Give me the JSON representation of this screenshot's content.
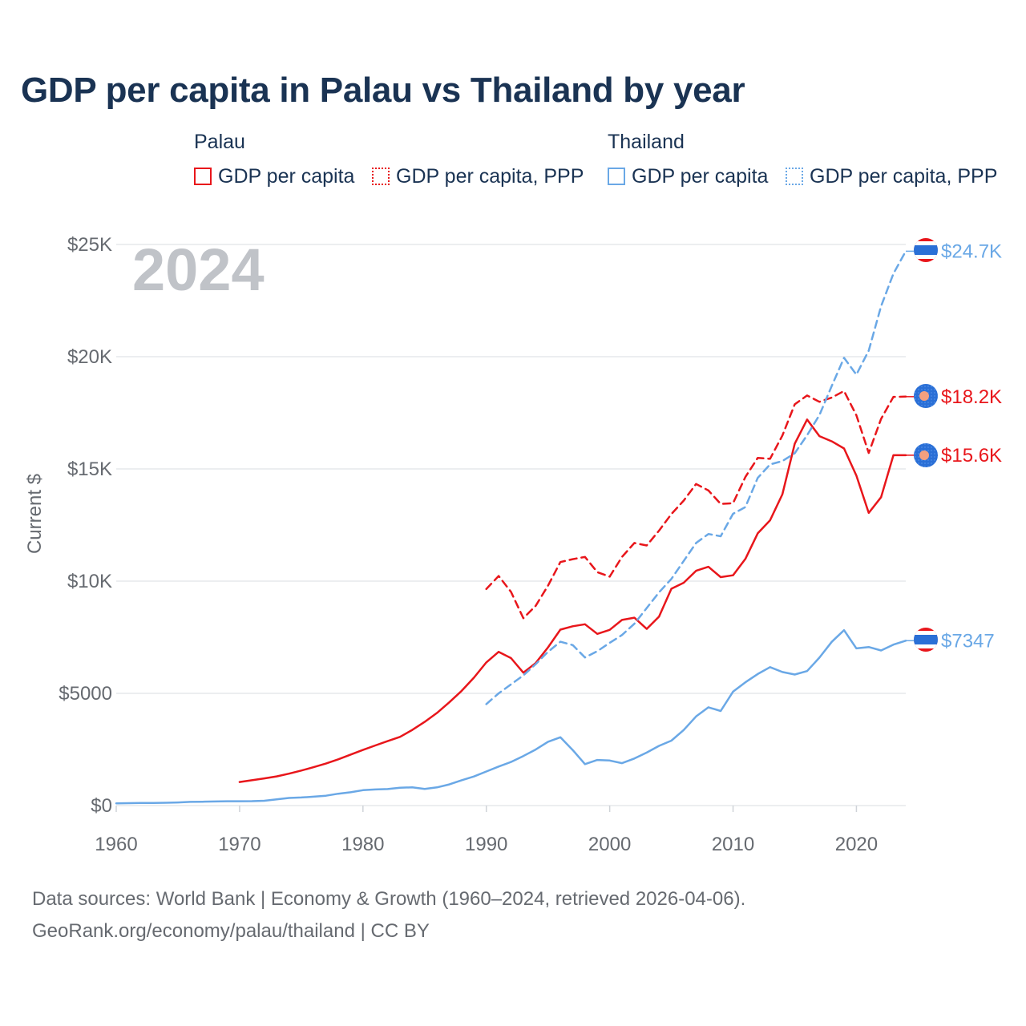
{
  "title": "GDP per capita in Palau vs Thailand by year",
  "legend": {
    "groups": [
      {
        "name": "Palau",
        "items": [
          {
            "label": "GDP per capita",
            "color": "#e8161b",
            "style": "solid"
          },
          {
            "label": "GDP per capita, PPP",
            "color": "#e8161b",
            "style": "dotted"
          }
        ]
      },
      {
        "name": "Thailand",
        "items": [
          {
            "label": "GDP per capita",
            "color": "#6aa8e6",
            "style": "solid"
          },
          {
            "label": "GDP per capita, PPP",
            "color": "#6aa8e6",
            "style": "dotted"
          }
        ]
      }
    ]
  },
  "year_watermark": "2024",
  "footer": {
    "line1": "Data sources: World Bank | Economy & Growth (1960–2024, retrieved 2026-04-06).",
    "line2": "GeoRank.org/economy/palau/thailand | CC BY"
  },
  "chart_data": {
    "type": "line",
    "title": "GDP per capita in Palau vs Thailand by year",
    "xlabel": "",
    "ylabel": "Current $",
    "xlim": [
      1960,
      2024
    ],
    "ylim": [
      0,
      25000
    ],
    "x_ticks": [
      1960,
      1970,
      1980,
      1990,
      2000,
      2010,
      2020
    ],
    "x_tick_labels": [
      "1960",
      "1970",
      "1980",
      "1990",
      "2000",
      "2010",
      "2020"
    ],
    "y_ticks": [
      0,
      5000,
      10000,
      15000,
      20000,
      25000
    ],
    "y_tick_labels": [
      "$0",
      "$5000",
      "$10K",
      "$15K",
      "$20K",
      "$25K"
    ],
    "grid": true,
    "series": [
      {
        "name": "Palau GDP per capita",
        "country": "Palau",
        "color": "#e8161b",
        "dashed": false,
        "end_label": "$15.6K",
        "x": [
          1970,
          1971,
          1972,
          1973,
          1974,
          1975,
          1976,
          1977,
          1978,
          1979,
          1980,
          1981,
          1982,
          1983,
          1984,
          1985,
          1986,
          1987,
          1988,
          1989,
          1990,
          1991,
          1992,
          1993,
          1994,
          1995,
          1996,
          1997,
          1998,
          1999,
          2000,
          2001,
          2002,
          2003,
          2004,
          2005,
          2006,
          2007,
          2008,
          2009,
          2010,
          2011,
          2012,
          2013,
          2014,
          2015,
          2016,
          2017,
          2018,
          2019,
          2020,
          2021,
          2022,
          2023,
          2024
        ],
        "values": [
          1050,
          1130,
          1210,
          1300,
          1420,
          1560,
          1710,
          1870,
          2060,
          2270,
          2480,
          2680,
          2870,
          3060,
          3370,
          3730,
          4130,
          4600,
          5110,
          5700,
          6380,
          6850,
          6570,
          5920,
          6350,
          7050,
          7840,
          7990,
          8080,
          7650,
          7830,
          8270,
          8370,
          7870,
          8420,
          9660,
          9930,
          10460,
          10640,
          10180,
          10260,
          10990,
          12130,
          12710,
          13870,
          16120,
          17200,
          16460,
          16230,
          15910,
          14700,
          13040,
          13740,
          15610,
          15610
        ]
      },
      {
        "name": "Palau GDP per capita, PPP",
        "country": "Palau",
        "color": "#e8161b",
        "dashed": true,
        "end_label": "$18.2K",
        "x": [
          1990,
          1991,
          1992,
          1993,
          1994,
          1995,
          1996,
          1997,
          1998,
          1999,
          2000,
          2001,
          2002,
          2003,
          2004,
          2005,
          2006,
          2007,
          2008,
          2009,
          2010,
          2011,
          2012,
          2013,
          2014,
          2015,
          2016,
          2017,
          2018,
          2019,
          2020,
          2021,
          2022,
          2023,
          2024
        ],
        "values": [
          9650,
          10230,
          9520,
          8350,
          8900,
          9800,
          10850,
          10980,
          11080,
          10400,
          10200,
          11080,
          11700,
          11590,
          12250,
          12990,
          13590,
          14330,
          14040,
          13440,
          13470,
          14640,
          15490,
          15450,
          16490,
          17880,
          18270,
          17990,
          18180,
          18470,
          17390,
          15710,
          17230,
          18210,
          18220
        ]
      },
      {
        "name": "Thailand GDP per capita",
        "country": "Thailand",
        "color": "#6aa8e6",
        "dashed": false,
        "end_label": "$7347",
        "x": [
          1960,
          1961,
          1962,
          1963,
          1964,
          1965,
          1966,
          1967,
          1968,
          1969,
          1970,
          1971,
          1972,
          1973,
          1974,
          1975,
          1976,
          1977,
          1978,
          1979,
          1980,
          1981,
          1982,
          1983,
          1984,
          1985,
          1986,
          1987,
          1988,
          1989,
          1990,
          1991,
          1992,
          1993,
          1994,
          1995,
          1996,
          1997,
          1998,
          1999,
          2000,
          2001,
          2002,
          2003,
          2004,
          2005,
          2006,
          2007,
          2008,
          2009,
          2010,
          2011,
          2012,
          2013,
          2014,
          2015,
          2016,
          2017,
          2018,
          2019,
          2020,
          2021,
          2022,
          2023,
          2024
        ],
        "values": [
          101,
          107,
          114,
          118,
          126,
          138,
          163,
          173,
          181,
          192,
          192,
          196,
          216,
          277,
          340,
          361,
          395,
          441,
          529,
          592,
          686,
          717,
          734,
          792,
          814,
          744,
          810,
          942,
          1128,
          1298,
          1518,
          1741,
          1942,
          2208,
          2495,
          2844,
          3044,
          2475,
          1846,
          2033,
          2008,
          1890,
          2096,
          2359,
          2660,
          2894,
          3369,
          3973,
          4379,
          4213,
          5076,
          5492,
          5861,
          6168,
          5951,
          5840,
          5994,
          6594,
          7296,
          7814,
          7002,
          7066,
          6909,
          7172,
          7347
        ]
      },
      {
        "name": "Thailand GDP per capita, PPP",
        "country": "Thailand",
        "color": "#6aa8e6",
        "dashed": true,
        "end_label": "$24.7K",
        "x": [
          1990,
          1991,
          1992,
          1993,
          1994,
          1995,
          1996,
          1997,
          1998,
          1999,
          2000,
          2001,
          2002,
          2003,
          2004,
          2005,
          2006,
          2007,
          2008,
          2009,
          2010,
          2011,
          2012,
          2013,
          2014,
          2015,
          2016,
          2017,
          2018,
          2019,
          2020,
          2021,
          2022,
          2023,
          2024
        ],
        "values": [
          4520,
          5000,
          5400,
          5800,
          6300,
          6850,
          7300,
          7150,
          6600,
          6880,
          7250,
          7600,
          8100,
          8800,
          9500,
          10100,
          10900,
          11700,
          12100,
          12000,
          13000,
          13300,
          14600,
          15200,
          15350,
          15700,
          16500,
          17400,
          18700,
          19950,
          19200,
          20270,
          22250,
          23700,
          24700
        ]
      }
    ]
  }
}
